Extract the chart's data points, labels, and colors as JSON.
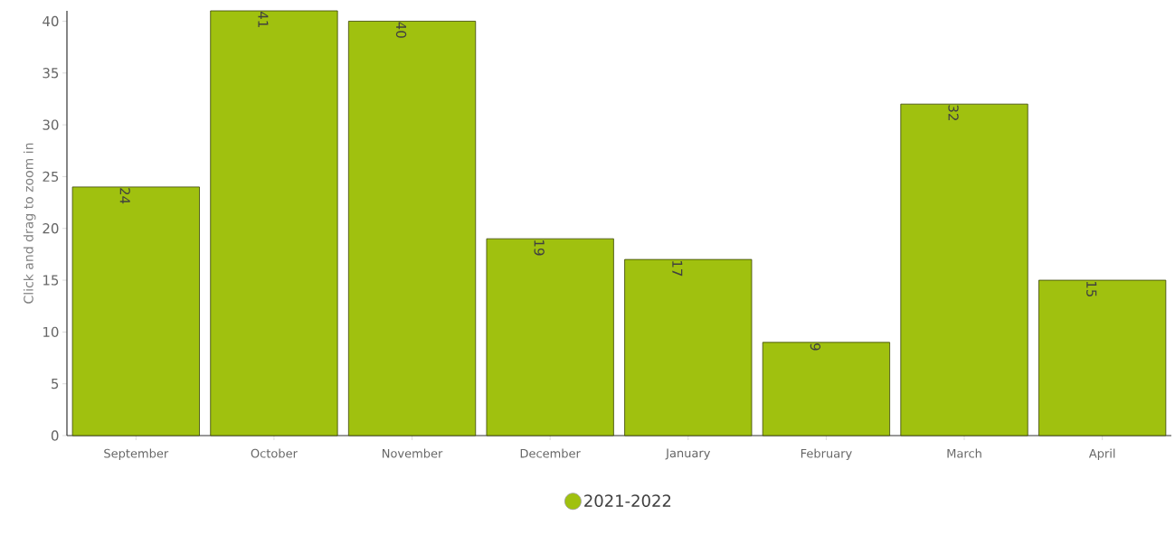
{
  "chart_data": {
    "type": "bar",
    "ylabel": "Click and drag to zoom in",
    "categories": [
      "September",
      "October",
      "November",
      "December",
      "January",
      "February",
      "March",
      "April"
    ],
    "series": [
      {
        "name": "2021-2022",
        "color": "#a0c10f",
        "values": [
          24,
          41,
          40,
          19,
          17,
          9,
          32,
          15
        ]
      }
    ],
    "ylim": [
      0,
      41
    ],
    "yticks": [
      0,
      5,
      10,
      15,
      20,
      25,
      30,
      35,
      40
    ],
    "data_labels": true,
    "legend": "bottom"
  }
}
